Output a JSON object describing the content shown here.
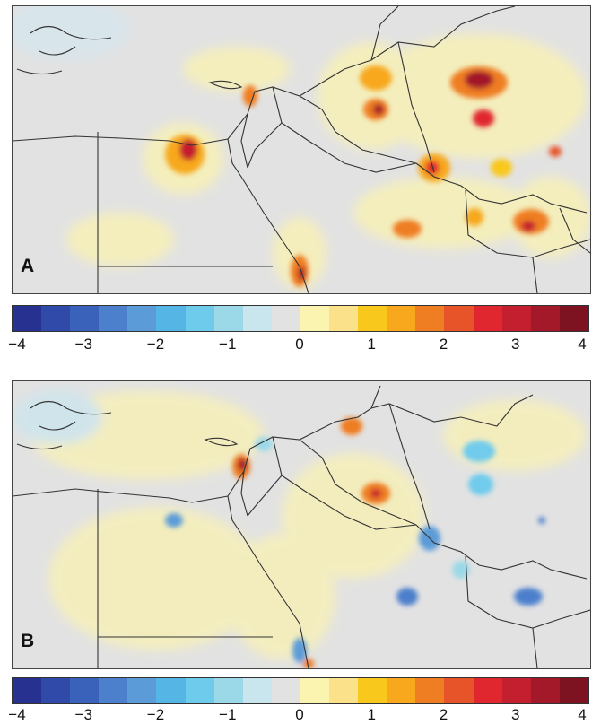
{
  "panels": [
    {
      "label": "A",
      "kind": "increase"
    },
    {
      "label": "B",
      "kind": "mixed"
    }
  ],
  "colorbar": {
    "min": -4,
    "max": 4,
    "colors": [
      "#27318f",
      "#2f4aa8",
      "#3a62bb",
      "#4c7fcc",
      "#5b9bd8",
      "#55b6e6",
      "#6fcbec",
      "#9bd9e8",
      "#c9e6ef",
      "#e2e2e2",
      "#fbf3b0",
      "#fbe28a",
      "#f9c81c",
      "#f7a81c",
      "#ef7d22",
      "#e7542a",
      "#e0262e",
      "#c41f2e",
      "#a3192a",
      "#7d1220"
    ],
    "tick_labels": [
      "−4",
      "−3",
      "−2",
      "−1",
      "0",
      "1",
      "2",
      "3",
      "4"
    ]
  },
  "colors": {
    "land": "#e2e2e2",
    "border": "#333333"
  }
}
